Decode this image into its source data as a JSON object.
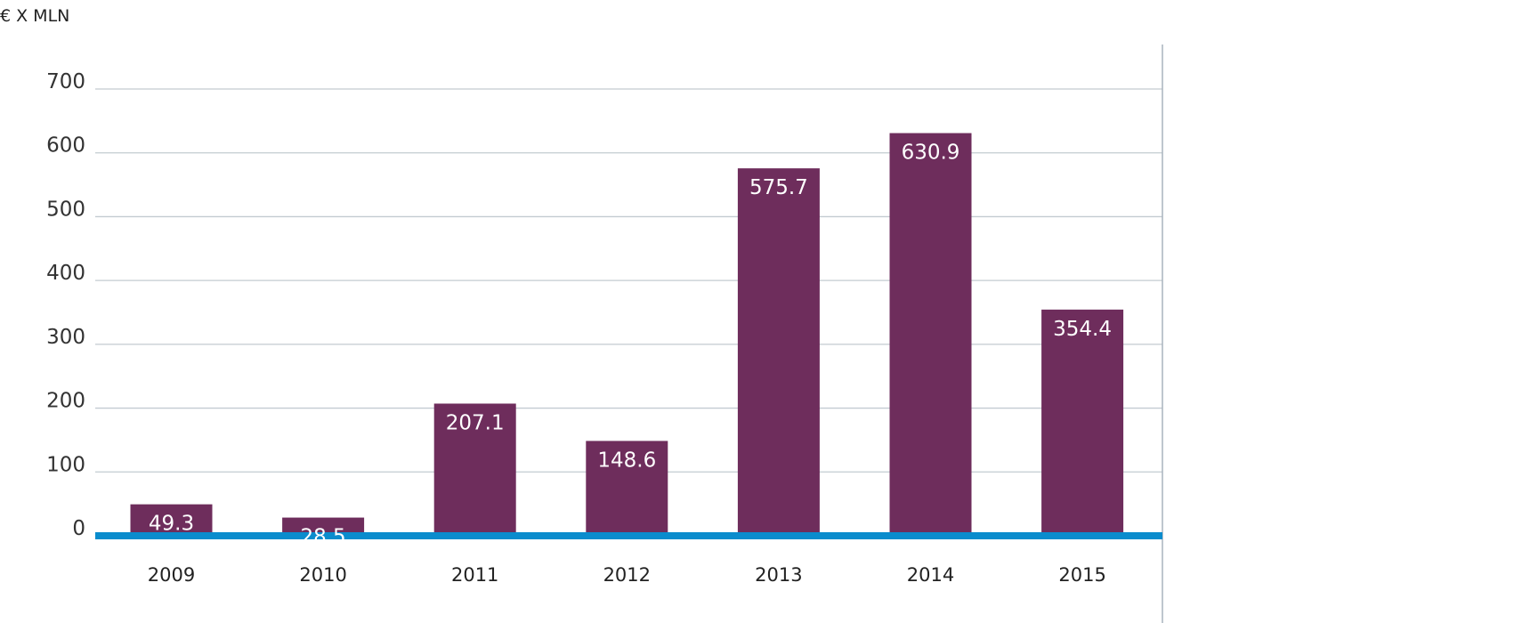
{
  "chart_data": {
    "type": "bar",
    "ylabel": "€ X MLN",
    "categories": [
      "2009",
      "2010",
      "2011",
      "2012",
      "2013",
      "2014",
      "2015"
    ],
    "values": [
      49.3,
      28.5,
      207.1,
      148.6,
      575.7,
      630.9,
      354.4
    ],
    "data_labels": [
      "49.3",
      "28.5",
      "207.1",
      "148.6",
      "575.7",
      "630.9",
      "354.4"
    ],
    "yticks": [
      "0",
      "100",
      "200",
      "300",
      "400",
      "500",
      "600",
      "700"
    ],
    "ylim": [
      0,
      700
    ],
    "grid": true,
    "colors": {
      "bar": "#6e2d5c",
      "baseline": "#0a8ccd",
      "grid": "#c3cbd1",
      "right_axis": "#a9b4bd"
    }
  }
}
